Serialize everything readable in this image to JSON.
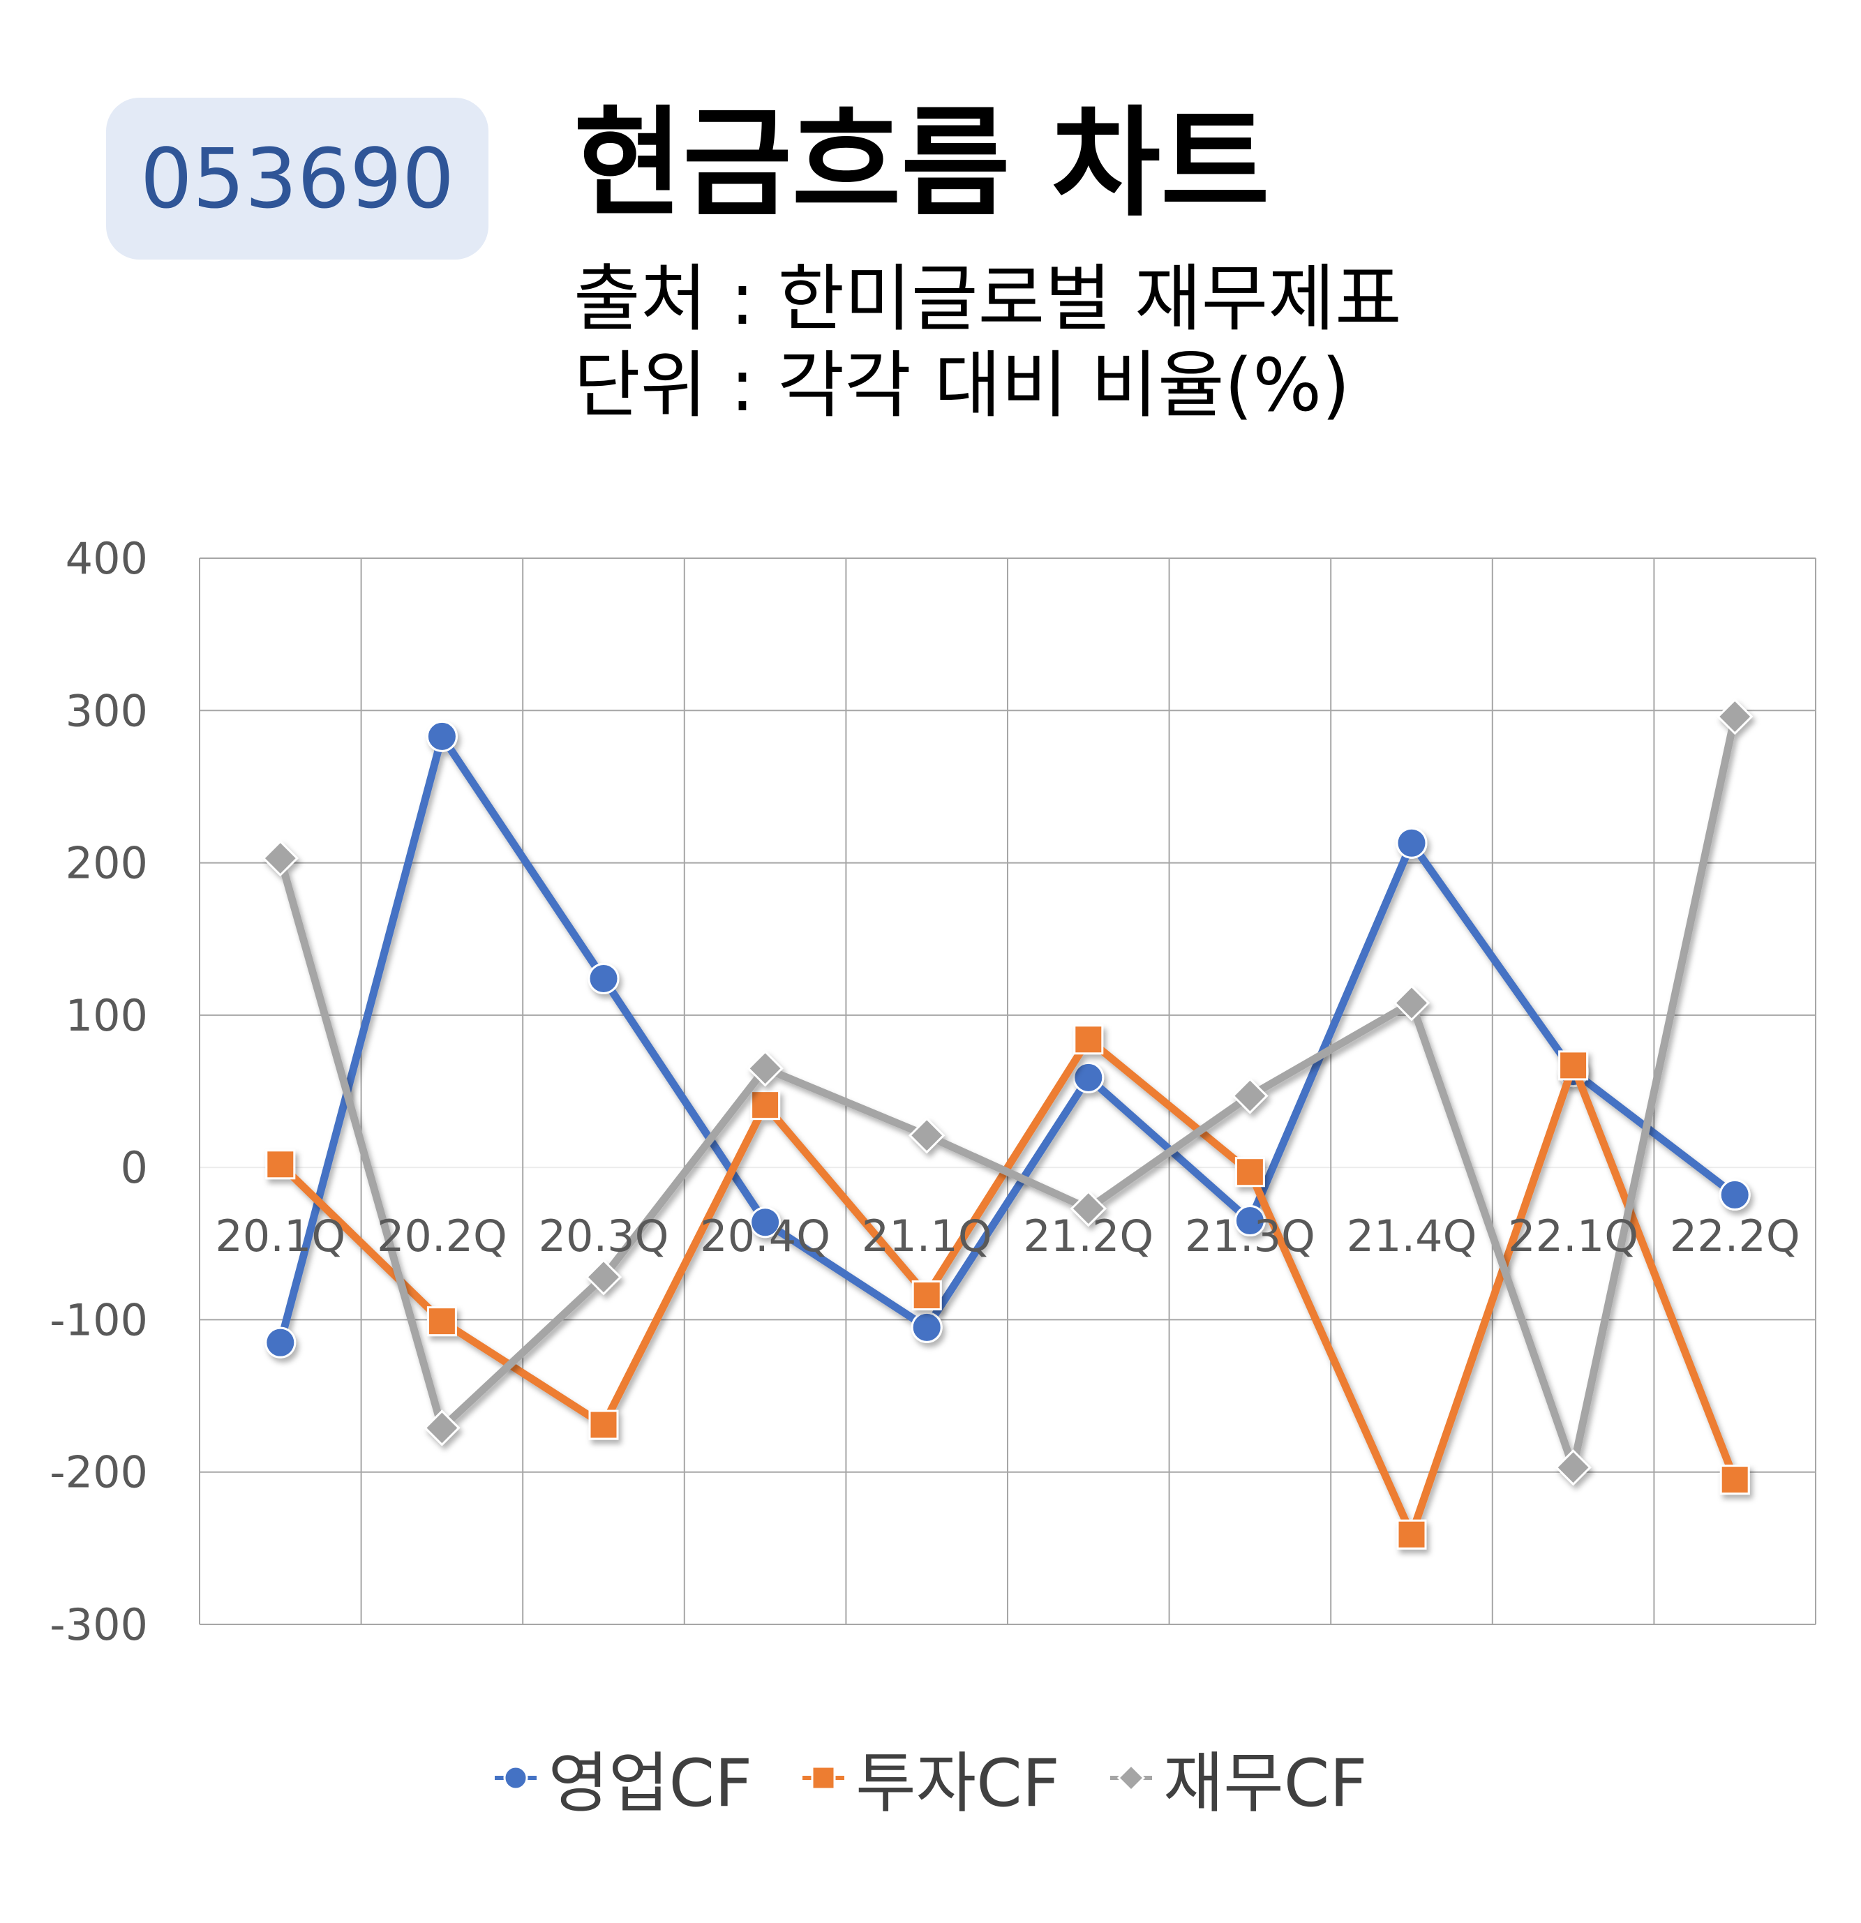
{
  "header": {
    "code": "053690",
    "title": "현금흐름 차트",
    "source": "출처 : 한미글로벌 재무제표",
    "unit": "단위 : 각각 대비 비율(%)"
  },
  "colors": {
    "operating": "#4472c4",
    "investing": "#ed7d31",
    "financing": "#a5a5a5",
    "badge_bg": "#e3eaf6",
    "badge_text": "#2f5597"
  },
  "chart_data": {
    "type": "line",
    "categories": [
      "20.1Q",
      "20.2Q",
      "20.3Q",
      "20.4Q",
      "21.1Q",
      "21.2Q",
      "21.3Q",
      "21.4Q",
      "22.1Q",
      "22.2Q"
    ],
    "series": [
      {
        "name": "영업CF",
        "marker": "circle",
        "values": [
          -115,
          283,
          124,
          -36,
          -105,
          59,
          -35,
          213,
          63,
          -18
        ]
      },
      {
        "name": "투자CF",
        "marker": "square",
        "values": [
          2,
          -101,
          -169,
          41,
          -84,
          84,
          -3,
          -241,
          67,
          -205
        ]
      },
      {
        "name": "재무CF",
        "marker": "diamond",
        "values": [
          203,
          -171,
          -72,
          65,
          21,
          -27,
          47,
          108,
          -197,
          296
        ]
      }
    ],
    "ylim": [
      -300,
      400
    ],
    "yticks": [
      "400",
      "300",
      "200",
      "100",
      "0",
      "-100",
      "-200",
      "-300"
    ],
    "grid": true,
    "legend_position": "bottom"
  }
}
